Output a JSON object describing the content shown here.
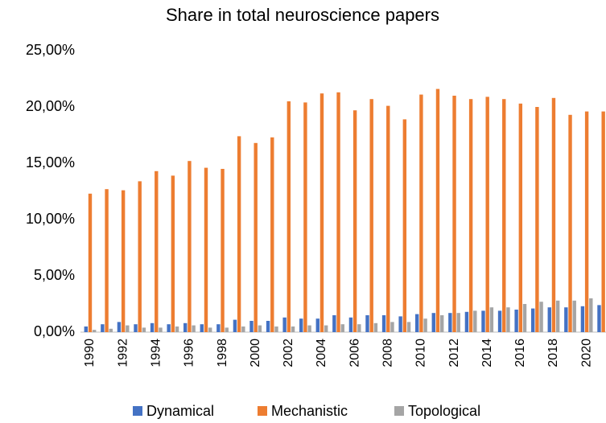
{
  "chart_data": {
    "type": "bar",
    "title": "Share in total neuroscience papers",
    "categories": [
      "1990",
      null,
      "1992",
      null,
      "1994",
      null,
      "1996",
      null,
      "1998",
      null,
      "2000",
      null,
      "2002",
      null,
      "2004",
      null,
      "2006",
      null,
      "2008",
      null,
      "2010",
      null,
      "2012",
      null,
      "2014",
      null,
      "2016",
      null,
      "2018",
      null,
      "2020",
      null
    ],
    "series": [
      {
        "name": "Dynamical",
        "color": "#4472c4",
        "values": [
          0.5,
          0.7,
          0.9,
          0.7,
          0.8,
          0.7,
          0.8,
          0.7,
          0.7,
          1.1,
          1.0,
          1.0,
          1.3,
          1.2,
          1.2,
          1.5,
          1.3,
          1.5,
          1.5,
          1.4,
          1.6,
          1.7,
          1.7,
          1.8,
          1.9,
          1.9,
          2.0,
          2.1,
          2.2,
          2.2,
          2.3,
          2.4
        ]
      },
      {
        "name": "Mechanistic",
        "color": "#ed7d31",
        "values": [
          12.3,
          12.7,
          12.6,
          13.4,
          14.3,
          13.9,
          15.2,
          14.6,
          14.5,
          17.4,
          16.8,
          17.3,
          20.5,
          20.4,
          21.2,
          21.3,
          19.7,
          20.7,
          20.1,
          18.9,
          21.1,
          21.6,
          21.0,
          20.7,
          20.9,
          20.7,
          20.3,
          20.0,
          20.8,
          19.3,
          19.6,
          19.6
        ]
      },
      {
        "name": "Topological",
        "color": "#a5a5a5",
        "values": [
          0.2,
          0.3,
          0.6,
          0.4,
          0.4,
          0.5,
          0.6,
          0.4,
          0.4,
          0.5,
          0.6,
          0.5,
          0.5,
          0.6,
          0.6,
          0.7,
          0.7,
          0.8,
          0.9,
          0.9,
          1.2,
          1.5,
          1.7,
          1.9,
          2.2,
          2.2,
          2.5,
          2.7,
          2.8,
          2.8,
          3.0,
          null
        ]
      }
    ],
    "ylim": [
      0,
      25
    ],
    "yticks": [
      {
        "value": 0,
        "label": "0,00%"
      },
      {
        "value": 5,
        "label": "5,00%"
      },
      {
        "value": 10,
        "label": "10,00%"
      },
      {
        "value": 15,
        "label": "15,00%"
      },
      {
        "value": 20,
        "label": "20,00%"
      },
      {
        "value": 25,
        "label": "25,00%"
      }
    ],
    "grid": false,
    "legend": "bottom"
  }
}
